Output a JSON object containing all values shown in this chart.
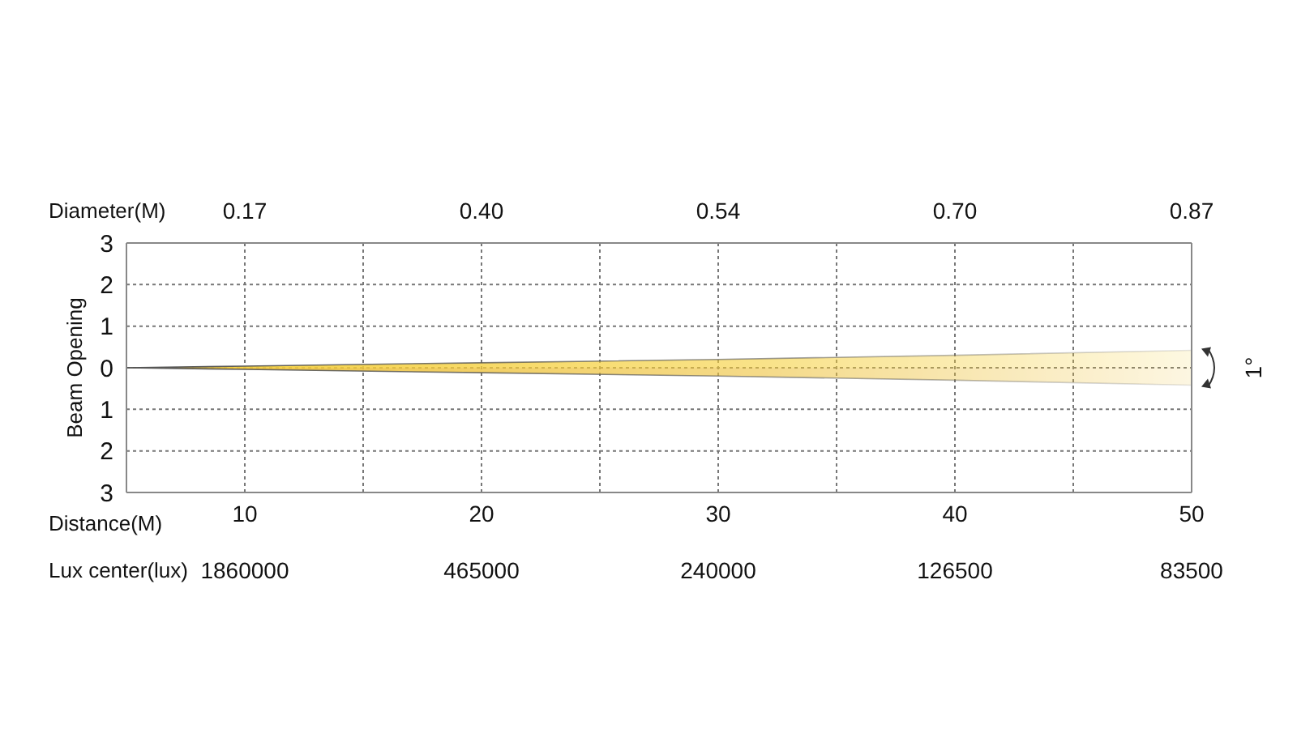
{
  "chart_data": {
    "type": "area",
    "ylabel": "Beam Opening",
    "xlabel": "Distance(M)",
    "x": [
      5,
      10,
      20,
      30,
      40,
      50
    ],
    "series": [
      {
        "color": "#f5cf3a",
        "values": [
          0,
          0.04,
          0.12,
          0.2,
          0.3,
          0.42
        ]
      },
      {
        "color": "#eec23a",
        "values": [
          0,
          -0.04,
          -0.12,
          -0.2,
          -0.3,
          -0.42
        ]
      }
    ],
    "xlim": [
      5,
      50
    ],
    "xticks": [
      10,
      {
        "value": 15,
        "label": null
      },
      20,
      {
        "value": 25,
        "label": null
      },
      30,
      {
        "value": 35,
        "label": null
      },
      40,
      {
        "value": 45,
        "label": null
      },
      50
    ],
    "ylim": [
      -3,
      3
    ],
    "yticks": [
      {
        "value": 3,
        "label": "3"
      },
      {
        "value": 2,
        "label": "2"
      },
      {
        "value": 1,
        "label": "1"
      },
      0,
      {
        "value": -1,
        "label": "1"
      },
      {
        "value": -2,
        "label": "2"
      },
      {
        "value": -3,
        "label": "3"
      }
    ],
    "grid": true,
    "annotations": [
      "Diameter(M)",
      "0.17",
      "0.40",
      "0.54",
      "0.70",
      "0.87",
      "Lux center(lux)",
      "1860000",
      "465000",
      "240000",
      "126500",
      "83500",
      "1°"
    ]
  }
}
